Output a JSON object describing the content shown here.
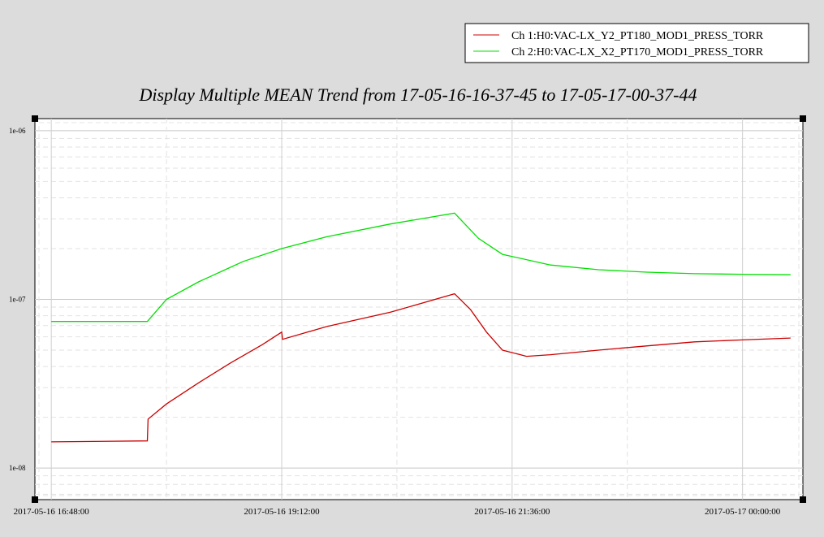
{
  "chart_data": {
    "type": "line",
    "title": "Display Multiple MEAN Trend from 17-05-16-16-37-45 to 17-05-17-00-37-44",
    "xlabel": "",
    "ylabel": "",
    "x_axis": {
      "kind": "time",
      "range": [
        "2017-05-16 16:37:45",
        "2017-05-17 00:37:44"
      ],
      "tick_labels": [
        {
          "time": "2017-05-16 16:48:00",
          "label": "2017-05-16 16:48:00"
        },
        {
          "time": "2017-05-16 19:12:00",
          "label": "2017-05-16 19:12:00"
        },
        {
          "time": "2017-05-16 21:36:00",
          "label": "2017-05-16 21:36:00"
        },
        {
          "time": "2017-05-17 00:00:00",
          "label": "2017-05-17 00:00:00"
        }
      ]
    },
    "y_axis": {
      "scale": "log",
      "range": [
        6.5e-09,
        1.18e-06
      ],
      "tick_labels": [
        {
          "value": 1e-08,
          "label": "1e-08"
        },
        {
          "value": 1e-07,
          "label": "1e-07"
        },
        {
          "value": 1e-06,
          "label": "1e-06"
        }
      ]
    },
    "grid": true,
    "legend_position": "top-right",
    "series": [
      {
        "name": "Ch 1:H0:VAC-LX_Y2_PT180_MOD1_PRESS_TORR",
        "color": "#cc0000",
        "points": [
          [
            "2017-05-16 16:48:00",
            1.43e-08
          ],
          [
            "2017-05-16 17:48:00",
            1.45e-08
          ],
          [
            "2017-05-16 17:48:30",
            1.95e-08
          ],
          [
            "2017-05-16 18:00:00",
            2.4e-08
          ],
          [
            "2017-05-16 18:20:00",
            3.2e-08
          ],
          [
            "2017-05-16 18:40:00",
            4.2e-08
          ],
          [
            "2017-05-16 19:00:00",
            5.4e-08
          ],
          [
            "2017-05-16 19:12:00",
            6.4e-08
          ],
          [
            "2017-05-16 19:12:30",
            5.8e-08
          ],
          [
            "2017-05-16 19:40:00",
            6.9e-08
          ],
          [
            "2017-05-16 20:20:00",
            8.4e-08
          ],
          [
            "2017-05-16 21:00:00",
            1.08e-07
          ],
          [
            "2017-05-16 21:10:00",
            8.7e-08
          ],
          [
            "2017-05-16 21:20:00",
            6.4e-08
          ],
          [
            "2017-05-16 21:30:00",
            5e-08
          ],
          [
            "2017-05-16 21:45:00",
            4.6e-08
          ],
          [
            "2017-05-16 22:00:00",
            4.7e-08
          ],
          [
            "2017-05-16 22:30:00",
            5e-08
          ],
          [
            "2017-05-16 23:00:00",
            5.3e-08
          ],
          [
            "2017-05-16 23:30:00",
            5.6e-08
          ],
          [
            "2017-05-17 00:00:00",
            5.75e-08
          ],
          [
            "2017-05-17 00:30:00",
            5.9e-08
          ]
        ]
      },
      {
        "name": "Ch 2:H0:VAC-LX_X2_PT170_MOD1_PRESS_TORR",
        "color": "#00e000",
        "points": [
          [
            "2017-05-16 16:48:00",
            7.4e-08
          ],
          [
            "2017-05-16 17:48:00",
            7.4e-08
          ],
          [
            "2017-05-16 18:00:00",
            1e-07
          ],
          [
            "2017-05-16 18:20:00",
            1.27e-07
          ],
          [
            "2017-05-16 18:40:00",
            1.55e-07
          ],
          [
            "2017-05-16 18:48:00",
            1.68e-07
          ],
          [
            "2017-05-16 19:12:00",
            2e-07
          ],
          [
            "2017-05-16 19:40:00",
            2.35e-07
          ],
          [
            "2017-05-16 20:20:00",
            2.8e-07
          ],
          [
            "2017-05-16 21:00:00",
            3.25e-07
          ],
          [
            "2017-05-16 21:15:00",
            2.3e-07
          ],
          [
            "2017-05-16 21:30:00",
            1.85e-07
          ],
          [
            "2017-05-16 22:00:00",
            1.6e-07
          ],
          [
            "2017-05-16 22:30:00",
            1.5e-07
          ],
          [
            "2017-05-16 23:00:00",
            1.45e-07
          ],
          [
            "2017-05-16 23:30:00",
            1.42e-07
          ],
          [
            "2017-05-17 00:00:00",
            1.41e-07
          ],
          [
            "2017-05-17 00:30:00",
            1.4e-07
          ]
        ]
      }
    ]
  }
}
